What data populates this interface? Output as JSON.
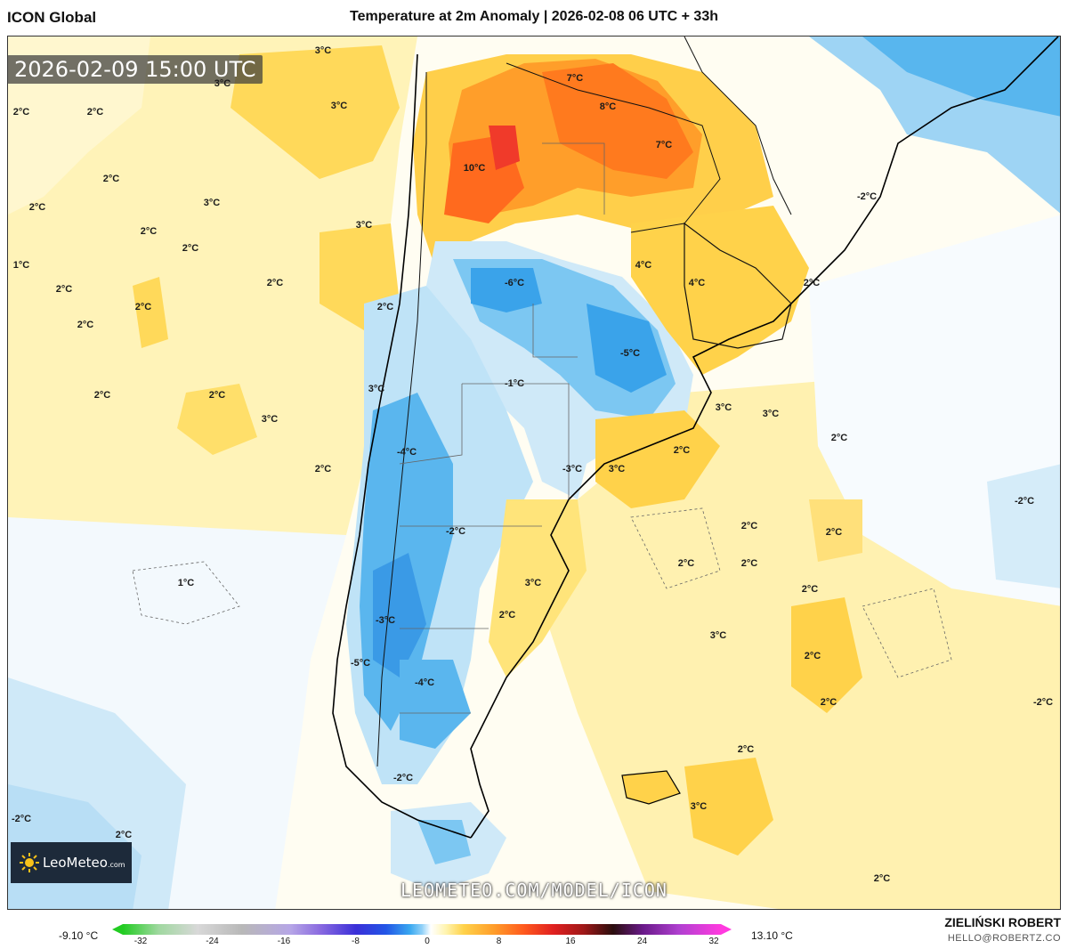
{
  "header": {
    "model": "ICON Global",
    "title": "Temperature at 2m Anomaly | 2026-02-08 06 UTC + 33h"
  },
  "valid_time": "2026-02-09 15:00 UTC",
  "branding": {
    "logo_text": "LeoMeteo",
    "logo_suffix": ".com",
    "watermark": "LEOMETEO.COM/MODEL/ICON",
    "author": "ZIELIŃSKI ROBERT",
    "email": "HELLO@ROBERTZ.CO"
  },
  "colorbar": {
    "min_label": "-9.10 °C",
    "max_label": "13.10 °C",
    "ticks": [
      "-32",
      "-24",
      "-16",
      "-8",
      "0",
      "8",
      "16",
      "24",
      "32"
    ]
  },
  "map_labels": [
    {
      "text": "3°C"
    },
    {
      "text": "3°C"
    },
    {
      "text": "3°C"
    },
    {
      "text": "2°C"
    },
    {
      "text": "2°C"
    },
    {
      "text": "7°C"
    },
    {
      "text": "8°C"
    },
    {
      "text": "7°C"
    },
    {
      "text": "10°C"
    },
    {
      "text": "2°C"
    },
    {
      "text": "2°C"
    },
    {
      "text": "3°C"
    },
    {
      "text": "2°C"
    },
    {
      "text": "2°C"
    },
    {
      "text": "3°C"
    },
    {
      "text": "-2°C"
    },
    {
      "text": "1°C"
    },
    {
      "text": "2°C"
    },
    {
      "text": "2°C"
    },
    {
      "text": "2°C"
    },
    {
      "text": "-6°C"
    },
    {
      "text": "4°C"
    },
    {
      "text": "4°C"
    },
    {
      "text": "2°C"
    },
    {
      "text": "2°C"
    },
    {
      "text": "-5°C"
    },
    {
      "text": "2°C"
    },
    {
      "text": "-1°C"
    },
    {
      "text": "3°C"
    },
    {
      "text": "2°C"
    },
    {
      "text": "3°C"
    },
    {
      "text": "3°C"
    },
    {
      "text": "3°C"
    },
    {
      "text": "-4°C"
    },
    {
      "text": "2°C"
    },
    {
      "text": "2°C"
    },
    {
      "text": "-3°C"
    },
    {
      "text": "3°C"
    },
    {
      "text": "2°C"
    },
    {
      "text": "-2°C"
    },
    {
      "text": "2°C"
    },
    {
      "text": "-2°C"
    },
    {
      "text": "2°C"
    },
    {
      "text": "2°C"
    },
    {
      "text": "1°C"
    },
    {
      "text": "3°C"
    },
    {
      "text": "2°C"
    },
    {
      "text": "2°C"
    },
    {
      "text": "2°C"
    },
    {
      "text": "-3°C"
    },
    {
      "text": "2°C"
    },
    {
      "text": "3°C"
    },
    {
      "text": "-5°C"
    },
    {
      "text": "-4°C"
    },
    {
      "text": "2°C"
    },
    {
      "text": "-2°C"
    },
    {
      "text": "2°C"
    },
    {
      "text": "2°C"
    },
    {
      "text": "-2°C"
    },
    {
      "text": "3°C"
    },
    {
      "text": "2°C"
    },
    {
      "text": "-2°C"
    },
    {
      "text": "2°C"
    }
  ]
}
